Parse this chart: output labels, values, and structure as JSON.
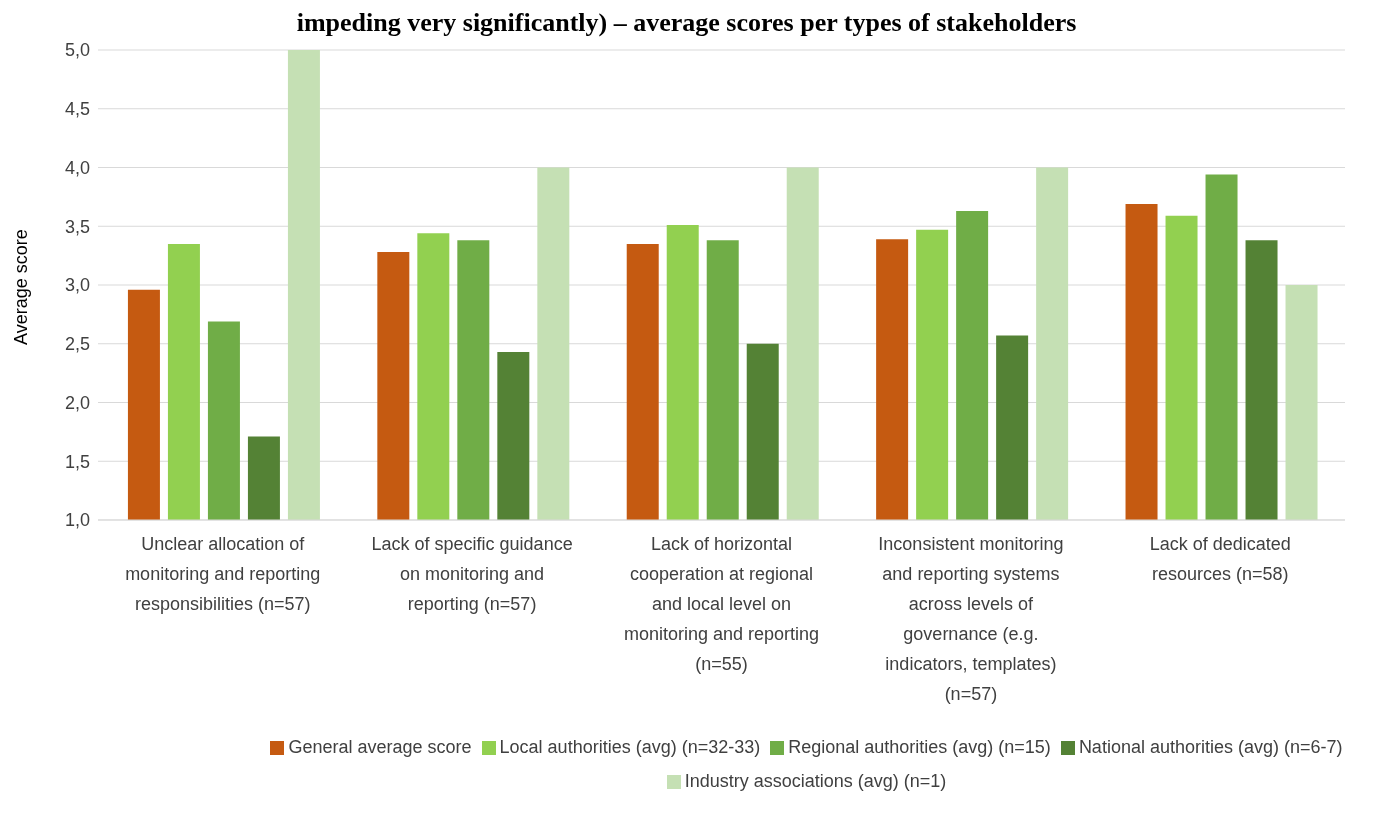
{
  "chart_data": {
    "type": "bar",
    "title": "impeding very significantly) – average scores per types of stakeholders",
    "ylabel": "Average score",
    "categories": [
      "Unclear allocation of monitoring and reporting responsibilities (n=57)",
      "Lack of specific guidance on monitoring and reporting (n=57)",
      "Lack of horizontal cooperation at regional and local level on monitoring and reporting (n=55)",
      "Inconsistent monitoring and reporting systems across levels of governance (e.g. indicators, templates) (n=57)",
      "Lack of dedicated resources (n=58)"
    ],
    "series": [
      {
        "name": "General average score",
        "color": "#c55a11",
        "values": [
          2.96,
          3.28,
          3.35,
          3.39,
          3.69
        ]
      },
      {
        "name": "Local authorities (avg) (n=32-33)",
        "color": "#92d050",
        "values": [
          3.35,
          3.44,
          3.51,
          3.47,
          3.59
        ]
      },
      {
        "name": "Regional authorities (avg) (n=15)",
        "color": "#70ad47",
        "values": [
          2.69,
          3.38,
          3.38,
          3.63,
          3.94
        ]
      },
      {
        "name": "National authorities (avg) (n=6-7)",
        "color": "#548235",
        "values": [
          1.71,
          2.43,
          2.5,
          2.57,
          3.38
        ]
      },
      {
        "name": "Industry associations (avg) (n=1)",
        "color": "#c5e0b4",
        "values": [
          5.0,
          4.0,
          4.0,
          4.0,
          3.0
        ]
      }
    ],
    "ylim": [
      1,
      5
    ],
    "yticks": [
      {
        "value": 1,
        "label": "1,0"
      },
      {
        "value": 1.5,
        "label": "1,5"
      },
      {
        "value": 2,
        "label": "2,0"
      },
      {
        "value": 2.5,
        "label": "2,5"
      },
      {
        "value": 3,
        "label": "3,0"
      },
      {
        "value": 3.5,
        "label": "3,5"
      },
      {
        "value": 4,
        "label": "4,0"
      },
      {
        "value": 4.5,
        "label": "4,5"
      },
      {
        "value": 5,
        "label": "5,0"
      }
    ],
    "grid": "y",
    "legend": "bottom"
  }
}
